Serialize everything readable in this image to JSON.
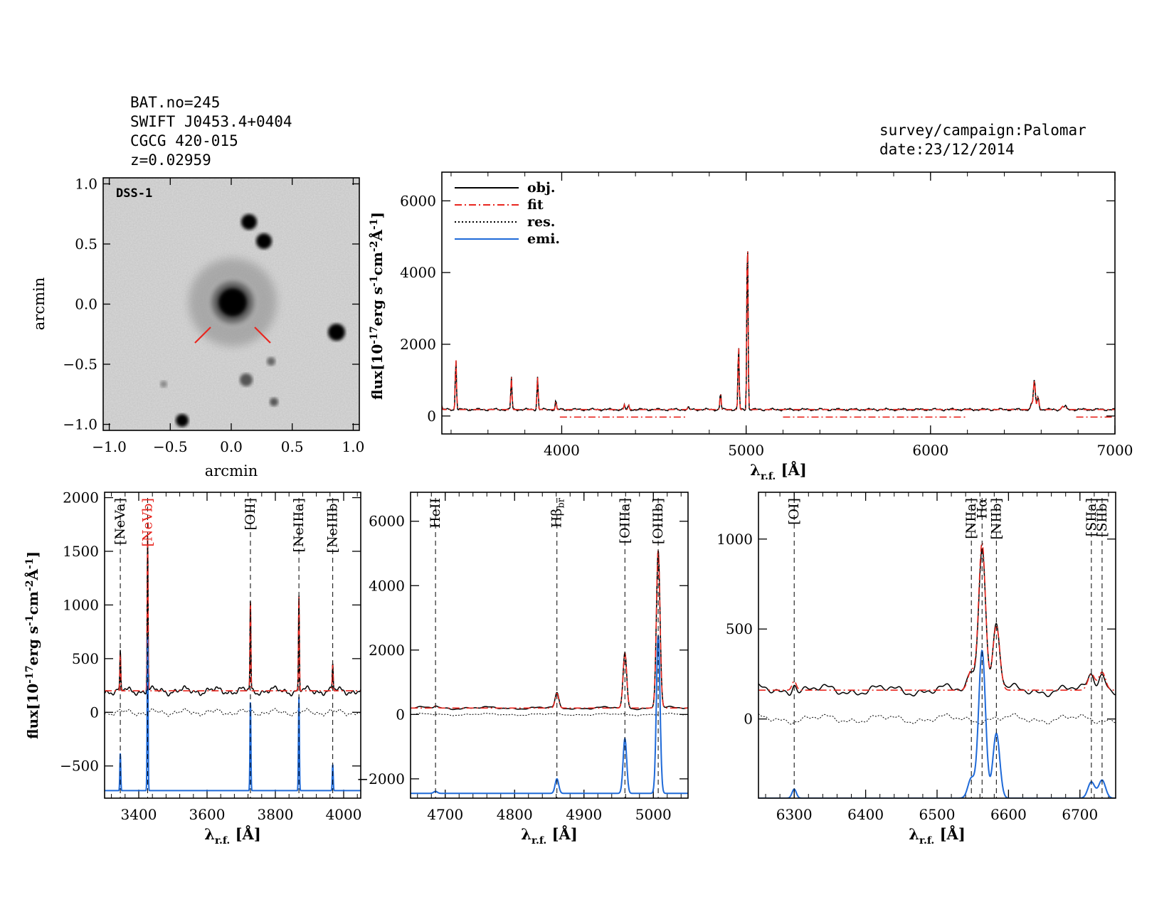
{
  "header": {
    "bat_no": "BAT.no=245",
    "swift": "SWIFT J0453.4+0404",
    "name": "CGCG 420-015",
    "z": "z=0.02959",
    "survey": "survey/campaign:Palomar",
    "date": "date:23/12/2014"
  },
  "image_panel": {
    "label": "DSS-1",
    "xlabel": "arcmin",
    "ylabel": "arcmin",
    "xticks": [
      "−1.0",
      "−0.5",
      "0.0",
      "0.5",
      "1.0"
    ],
    "yticks": [
      "−1.0",
      "−0.5",
      "0.0",
      "0.5",
      "1.0"
    ]
  },
  "colors": {
    "obj": "#000000",
    "fit": "#e8261f",
    "res": "#000000",
    "emi": "#1f6ad8"
  },
  "chart_data": [
    {
      "type": "line",
      "panel": "full-spectrum",
      "xlabel": "λr.f. [Å]",
      "ylabel": "flux[10⁻¹⁷erg s⁻¹cm⁻²Å⁻¹]",
      "xlim": [
        3350,
        7000
      ],
      "ylim": [
        -500,
        6800
      ],
      "xticks": [
        4000,
        5000,
        6000,
        7000
      ],
      "yticks": [
        0,
        2000,
        4000,
        6000
      ],
      "legend": {
        "position": "top-left",
        "entries": [
          "obj.",
          "fit",
          "res.",
          "emi."
        ]
      },
      "continuum": 180,
      "emission_lines": [
        {
          "x": 3346,
          "peak": 200
        },
        {
          "x": 3426,
          "peak": 1450
        },
        {
          "x": 3727,
          "peak": 900
        },
        {
          "x": 3869,
          "peak": 920
        },
        {
          "x": 3968,
          "peak": 250
        },
        {
          "x": 4340,
          "peak": 130
        },
        {
          "x": 4363,
          "peak": 120
        },
        {
          "x": 4686,
          "peak": 60
        },
        {
          "x": 4861,
          "peak": 480
        },
        {
          "x": 4959,
          "peak": 1800
        },
        {
          "x": 5007,
          "peak": 5100
        },
        {
          "x": 6548,
          "peak": 150
        },
        {
          "x": 6563,
          "peak": 820
        },
        {
          "x": 6583,
          "peak": 360
        },
        {
          "x": 6716,
          "peak": 90
        },
        {
          "x": 6731,
          "peak": 90
        }
      ]
    },
    {
      "type": "line",
      "panel": "zoom-1",
      "xlabel": "λr.f. [Å]",
      "ylabel": "flux[10⁻¹⁷erg s⁻¹cm⁻²Å⁻¹]",
      "xlim": [
        3300,
        4050
      ],
      "ylim": [
        -800,
        2050
      ],
      "xticks": [
        3400,
        3600,
        3800,
        4000
      ],
      "yticks": [
        -500,
        0,
        500,
        1000,
        1500,
        2000
      ],
      "continuum": 200,
      "emi_baseline": -730,
      "lines": [
        {
          "label": "[NeVa]",
          "x": 3346,
          "peak": 350,
          "color": "black"
        },
        {
          "label": "[NeVb]",
          "x": 3426,
          "peak": 1450,
          "color": "red"
        },
        {
          "label": "[OII]",
          "x": 3727,
          "peak": 850,
          "color": "black"
        },
        {
          "label": "[NeIIIa]",
          "x": 3869,
          "peak": 880,
          "color": "black"
        },
        {
          "label": "[NeIIIb]",
          "x": 3968,
          "peak": 250,
          "color": "black"
        }
      ]
    },
    {
      "type": "line",
      "panel": "zoom-2",
      "xlabel": "λr.f. [Å]",
      "xlim": [
        4650,
        5050
      ],
      "ylim": [
        -2600,
        6900
      ],
      "xticks": [
        4700,
        4800,
        4900,
        5000
      ],
      "yticks": [
        -2000,
        0,
        2000,
        4000,
        6000
      ],
      "continuum": 200,
      "emi_baseline": -2450,
      "lines": [
        {
          "label": "HeII",
          "x": 4686,
          "peak": 60,
          "color": "black"
        },
        {
          "label": "Hβ",
          "sub": "br",
          "x": 4861,
          "peak": 450,
          "color": "black"
        },
        {
          "label": "[OIIIa]",
          "x": 4959,
          "peak": 1700,
          "color": "black"
        },
        {
          "label": "[OIIIb]",
          "x": 5007,
          "peak": 4900,
          "color": "black"
        }
      ]
    },
    {
      "type": "line",
      "panel": "zoom-3",
      "xlabel": "λr.f. [Å]",
      "xlim": [
        6250,
        6750
      ],
      "ylim": [
        -440,
        1260
      ],
      "xticks": [
        6300,
        6400,
        6500,
        6600,
        6700
      ],
      "yticks": [
        0,
        500,
        1000
      ],
      "continuum": 160,
      "emi_baseline": -440,
      "lines": [
        {
          "label": "[OI]",
          "x": 6300,
          "peak": 50,
          "color": "black"
        },
        {
          "label": "[NIIa]",
          "x": 6548,
          "peak": 110,
          "color": "black"
        },
        {
          "label": "Hα",
          "x": 6563,
          "peak": 820,
          "color": "black"
        },
        {
          "label": "[NIIb]",
          "x": 6583,
          "peak": 360,
          "color": "black"
        },
        {
          "label": "[SIIa]",
          "x": 6716,
          "peak": 90,
          "color": "black"
        },
        {
          "label": "[SIIb]",
          "x": 6731,
          "peak": 100,
          "color": "black"
        }
      ]
    }
  ]
}
